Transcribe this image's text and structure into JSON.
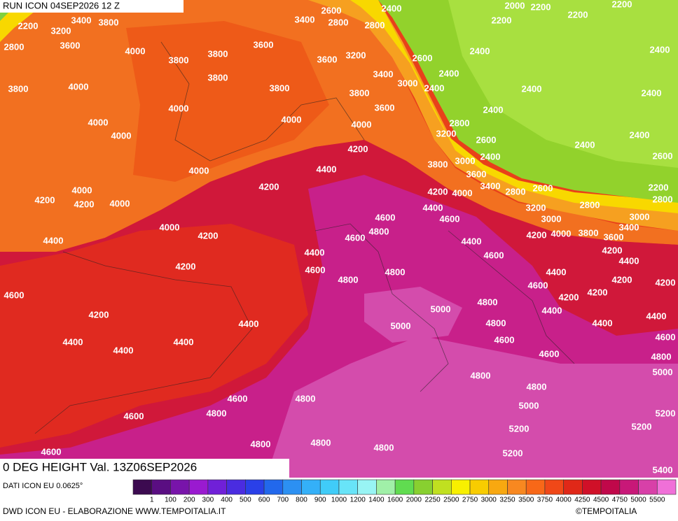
{
  "header": {
    "run": "RUN ICON 04SEP2026 12 Z"
  },
  "title": "0 DEG HEIGHT Val. 13Z06SEP2026",
  "source": "DATI ICON EU 0.0625°",
  "footer": "DWD ICON EU - ELABORAZIONE WWW.TEMPOITALIA.IT",
  "copyright": "©TEMPOITALIA",
  "legend": {
    "labels": [
      1,
      100,
      200,
      300,
      400,
      500,
      600,
      700,
      800,
      900,
      1000,
      1200,
      1400,
      1600,
      2000,
      2250,
      2500,
      2750,
      3000,
      3250,
      3500,
      3750,
      4000,
      4250,
      4500,
      4750,
      5000,
      5500
    ],
    "colors": [
      "#3c0a50",
      "#5a0e82",
      "#7814aa",
      "#9a1ad0",
      "#7020d8",
      "#4a2ce0",
      "#2a40e8",
      "#2268ec",
      "#2c90f2",
      "#34b0f8",
      "#40ccf8",
      "#68e4f8",
      "#98f4f4",
      "#a0f0a8",
      "#60dc50",
      "#88d030",
      "#c0e020",
      "#f8f000",
      "#f8cc00",
      "#f8a810",
      "#f88820",
      "#f86818",
      "#f04818",
      "#e02818",
      "#d01028",
      "#c0084a",
      "#c81878",
      "#d840a8",
      "#f070d8"
    ]
  },
  "contour_labels": [
    2200,
    3200,
    3400,
    3800,
    2800,
    3600,
    4000,
    3800,
    3800,
    3400,
    2600,
    2800,
    2400,
    2800,
    2000,
    2200,
    2200,
    2200,
    2200,
    3600,
    3600,
    3200,
    2600,
    2400,
    2400,
    2400,
    3400,
    3000,
    2400,
    2400,
    2400,
    3800,
    4000,
    3800,
    3800,
    3800,
    3600,
    2400,
    4000,
    4000,
    4000,
    2800,
    3200,
    2600,
    2400,
    4000,
    4000,
    4200,
    2400,
    3000,
    2400,
    2600,
    3800,
    3600,
    4400,
    4000,
    4200,
    3400,
    2800,
    2600,
    2200,
    4200,
    4000,
    4000,
    4200,
    4200,
    4000,
    2800,
    3200,
    2800,
    4400,
    4600,
    4600,
    3000,
    3000,
    4000,
    4200,
    4800,
    4600,
    4200,
    4000,
    3800,
    3600,
    3400,
    4400,
    4400,
    4200,
    4400,
    4400,
    4600,
    4200,
    4600,
    4800,
    4400,
    4200,
    4800,
    4600,
    4200,
    4200,
    4200,
    4600,
    5000,
    4800,
    4400,
    4400,
    4200,
    4400,
    5000,
    4800,
    4400,
    4400,
    4400,
    4400,
    4600,
    4600,
    4600,
    4800,
    4800,
    5000,
    4800,
    4600,
    4800,
    5000,
    4800,
    4600,
    5200,
    5200,
    5200,
    4800,
    4800,
    4800,
    4600,
    5200,
    5400
  ]
}
